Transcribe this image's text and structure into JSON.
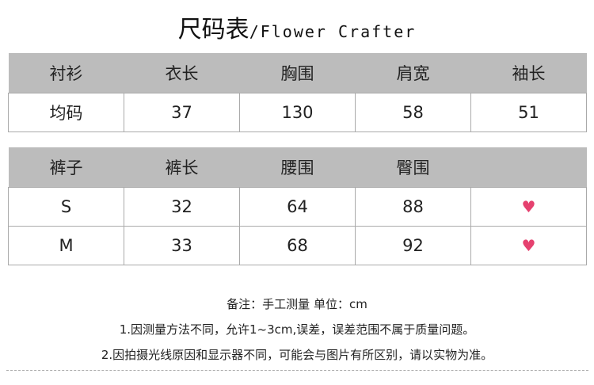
{
  "title": {
    "cn": "尺码表",
    "en": "/Flower Crafter"
  },
  "shirt": {
    "headers": [
      "衬衫",
      "衣长",
      "胸围",
      "肩宽",
      "袖长"
    ],
    "rows": [
      [
        "均码",
        "37",
        "130",
        "58",
        "51"
      ]
    ]
  },
  "pants": {
    "headers": [
      "裤子",
      "裤长",
      "腰围",
      "臀围",
      ""
    ],
    "rows": [
      [
        "S",
        "32",
        "64",
        "88"
      ],
      [
        "M",
        "33",
        "68",
        "92"
      ]
    ],
    "heart_icon": "heart-icon",
    "heart_color": "#e5416f"
  },
  "notes": {
    "line0": "备注：手工测量 单位：cm",
    "line1": "1.因测量方法不同，允许1~3cm,误差，误差范围不属于质量问题。",
    "line2": "2.因拍摄光线原因和显示器不同，可能会与图片有所区别，请以实物为准。"
  }
}
